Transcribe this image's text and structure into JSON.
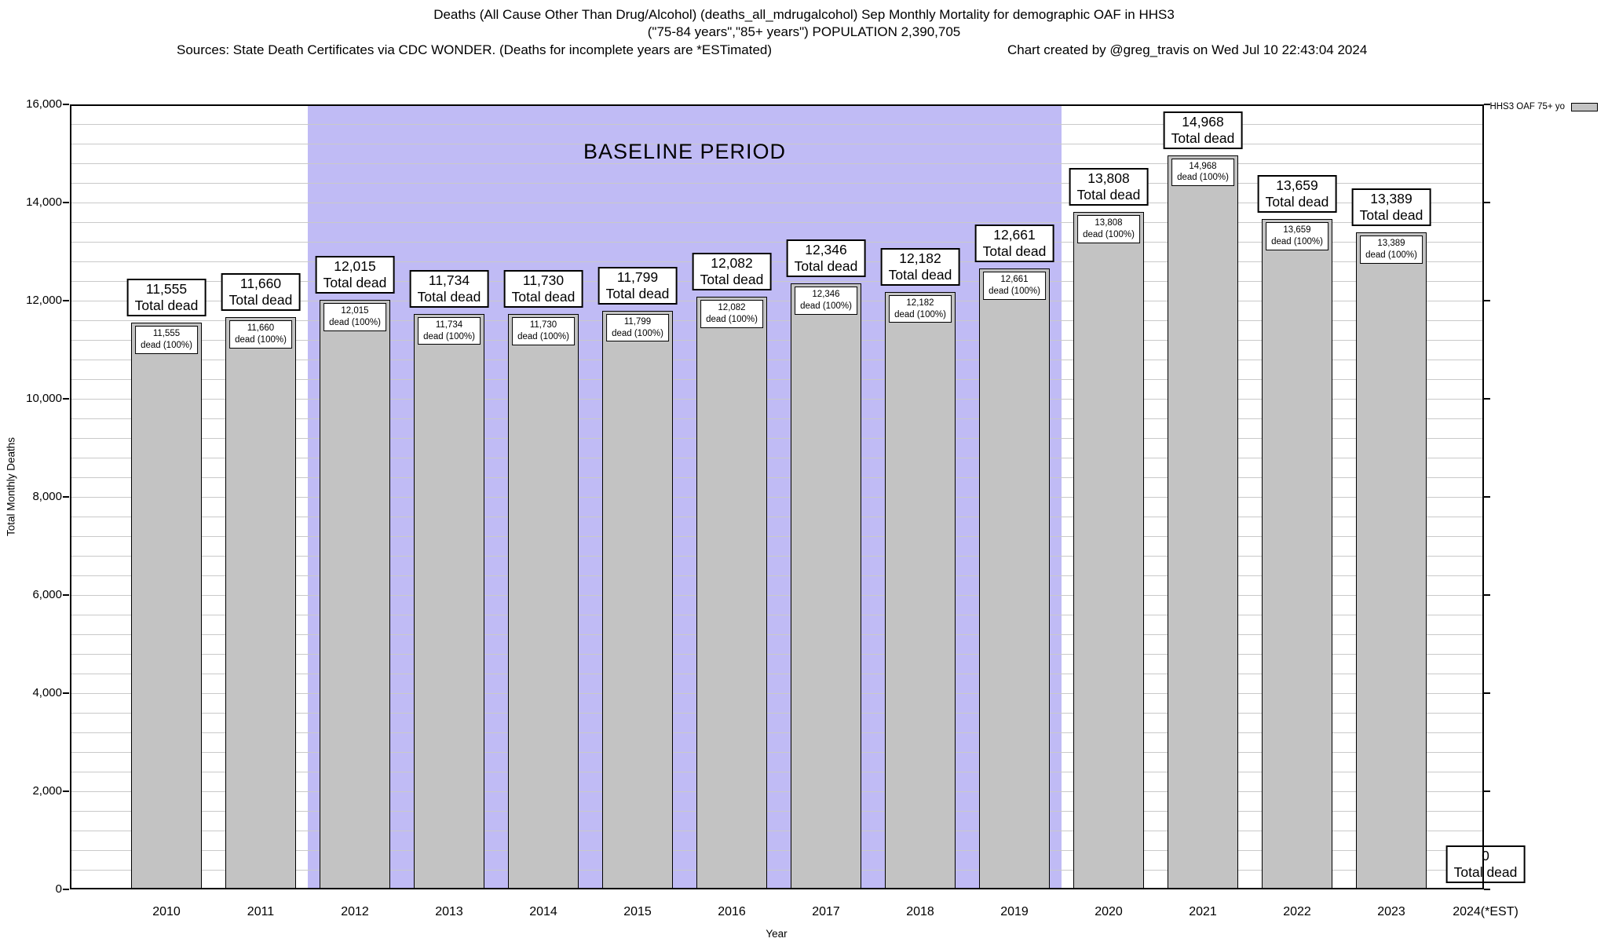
{
  "header": {
    "sources": "Sources: State Death Certificates via CDC WONDER. (Deaths for incomplete years are *ESTimated)",
    "credit": "Chart created by @greg_travis on Wed Jul 10 22:43:04 2024"
  },
  "legend": {
    "label": "HHS3 OAF 75+ yo",
    "swatch_color": "#c3c3c3",
    "position": "top-right"
  },
  "chart_data": {
    "type": "bar",
    "title": "Deaths (All Cause Other Than Drug/Alcohol) (deaths_all_mdrugalcohol) Sep Monthly Mortality for demographic OAF in HHS3",
    "subtitle": "(\"75-84 years\",\"85+ years\") POPULATION 2,390,705",
    "xlabel": "Year",
    "ylabel": "Total Monthly Deaths",
    "ylim": [
      0,
      16000
    ],
    "ytick_step": 2000,
    "minor_grid_step": 400,
    "grid": "horizontal",
    "series_name": "HHS3 OAF 75+ yo",
    "categories": [
      "2010",
      "2011",
      "2012",
      "2013",
      "2014",
      "2015",
      "2016",
      "2017",
      "2018",
      "2019",
      "2020",
      "2021",
      "2022",
      "2023",
      "2024(*EST)"
    ],
    "values": [
      11555,
      11660,
      12015,
      11734,
      11730,
      11799,
      12082,
      12346,
      12182,
      12661,
      13808,
      14968,
      13659,
      13389,
      0
    ],
    "bars": [
      {
        "year": "2010",
        "value": 11555,
        "label": "11,555"
      },
      {
        "year": "2011",
        "value": 11660,
        "label": "11,660"
      },
      {
        "year": "2012",
        "value": 12015,
        "label": "12,015"
      },
      {
        "year": "2013",
        "value": 11734,
        "label": "11,734"
      },
      {
        "year": "2014",
        "value": 11730,
        "label": "11,730"
      },
      {
        "year": "2015",
        "value": 11799,
        "label": "11,799"
      },
      {
        "year": "2016",
        "value": 12082,
        "label": "12,082"
      },
      {
        "year": "2017",
        "value": 12346,
        "label": "12,346"
      },
      {
        "year": "2018",
        "value": 12182,
        "label": "12,182"
      },
      {
        "year": "2019",
        "value": 12661,
        "label": "12,661"
      },
      {
        "year": "2020",
        "value": 13808,
        "label": "13,808"
      },
      {
        "year": "2021",
        "value": 14968,
        "label": "14,968"
      },
      {
        "year": "2022",
        "value": 13659,
        "label": "13,659"
      },
      {
        "year": "2023",
        "value": 13389,
        "label": "13,389"
      },
      {
        "year": "2024(*EST)",
        "value": 0,
        "label": "0"
      }
    ],
    "bar_top_label_suffix": "Total dead",
    "bar_inner_label_suffix": "dead (100%)",
    "baseline": {
      "label": "BASELINE PERIOD",
      "from_year": "2012",
      "to_year": "2019"
    },
    "colors": {
      "bar_fill": "#c3c3c3",
      "bar_border": "#000000",
      "baseline_fill": "#c0bbf5",
      "grid": "#c9c9c9",
      "background": "#ffffff"
    }
  }
}
